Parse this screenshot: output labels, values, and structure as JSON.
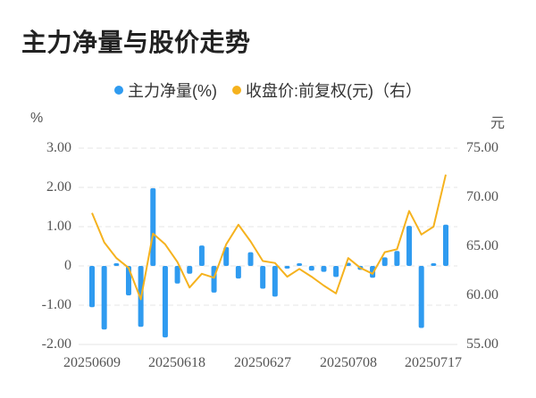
{
  "title": "主力净量与股价走势",
  "legend": [
    {
      "label": "主力净量(%)",
      "color": "#2f9bf0"
    },
    {
      "label": "收盘价:前复权(元)（右）",
      "color": "#f5b21e"
    }
  ],
  "axes": {
    "left_unit": "%",
    "right_unit": "元",
    "left_ticks": [
      "3.00",
      "2.00",
      "1.00",
      "0",
      "-1.00",
      "-2.00"
    ],
    "right_ticks": [
      "75.00",
      "70.00",
      "65.00",
      "60.00",
      "55.00"
    ],
    "x_labels": [
      "20250609",
      "20250618",
      "20250627",
      "20250708",
      "20250717"
    ]
  },
  "chart_data": {
    "type": "bar+line",
    "title": "主力净量与股价走势",
    "x": [
      "20250609",
      "20250610",
      "20250611",
      "20250612",
      "20250613",
      "20250616",
      "20250617",
      "20250618",
      "20250619",
      "20250620",
      "20250623",
      "20250624",
      "20250625",
      "20250626",
      "20250627",
      "20250630",
      "20250701",
      "20250702",
      "20250703",
      "20250704",
      "20250707",
      "20250708",
      "20250709",
      "20250710",
      "20250711",
      "20250714",
      "20250715",
      "20250716",
      "20250717",
      "20250718"
    ],
    "x_tick_labels": [
      "20250609",
      "20250618",
      "20250627",
      "20250708",
      "20250717"
    ],
    "series": [
      {
        "name": "主力净量(%)",
        "type": "bar",
        "axis": "left",
        "color": "#2f9bf0",
        "values": [
          -1.05,
          -1.62,
          0.05,
          -0.75,
          -1.55,
          1.98,
          -1.82,
          -0.45,
          -0.2,
          0.52,
          -0.68,
          0.48,
          -0.32,
          0.35,
          -0.58,
          -0.78,
          -0.05,
          0.03,
          -0.12,
          -0.15,
          -0.28,
          0.08,
          -0.1,
          -0.3,
          0.22,
          0.38,
          1.02,
          -1.58,
          0.05,
          1.05
        ]
      },
      {
        "name": "收盘价:前复权(元)（右）",
        "type": "line",
        "axis": "right",
        "color": "#f5b21e",
        "values": [
          68.4,
          65.4,
          63.8,
          62.8,
          59.6,
          66.3,
          65.2,
          63.4,
          60.8,
          62.2,
          61.8,
          65.2,
          67.2,
          65.5,
          63.5,
          63.3,
          61.9,
          62.7,
          61.9,
          61.0,
          60.2,
          63.8,
          62.8,
          62.2,
          64.4,
          64.7,
          68.6,
          66.2,
          67.0,
          72.3
        ]
      }
    ],
    "y_left": {
      "label": "%",
      "ylim": [
        -2,
        3
      ],
      "ticks": [
        3,
        2,
        1,
        0,
        -1,
        -2
      ]
    },
    "y_right": {
      "label": "元",
      "ylim": [
        55,
        75
      ],
      "ticks": [
        75,
        70,
        65,
        60,
        55
      ]
    },
    "grid": "dashed horizontal",
    "legend_position": "top"
  }
}
